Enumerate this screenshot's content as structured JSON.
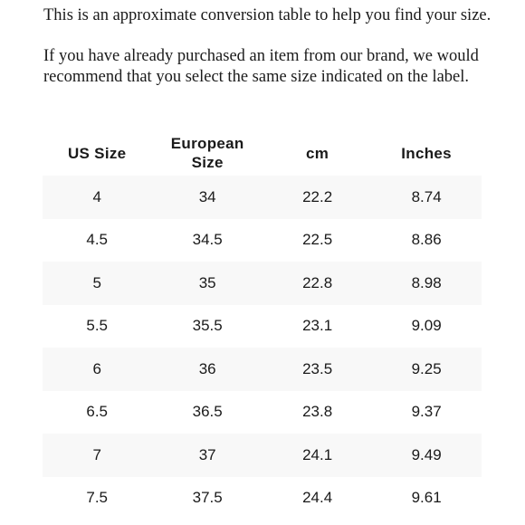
{
  "intro": {
    "paragraph1": "This is an approximate conversion table to help you find your size.",
    "paragraph2": "If you have already purchased an item from our brand, we would recommend that you select the same size indicated on the label."
  },
  "size_table": {
    "headers": {
      "us_size": "US Size",
      "european_size": "European Size",
      "cm": "cm",
      "inches": "Inches"
    },
    "rows": [
      {
        "us": "4",
        "eu": "34",
        "cm": "22.2",
        "in": "8.74"
      },
      {
        "us": "4.5",
        "eu": "34.5",
        "cm": "22.5",
        "in": "8.86"
      },
      {
        "us": "5",
        "eu": "35",
        "cm": "22.8",
        "in": "8.98"
      },
      {
        "us": "5.5",
        "eu": "35.5",
        "cm": "23.1",
        "in": "9.09"
      },
      {
        "us": "6",
        "eu": "36",
        "cm": "23.5",
        "in": "9.25"
      },
      {
        "us": "6.5",
        "eu": "36.5",
        "cm": "23.8",
        "in": "9.37"
      },
      {
        "us": "7",
        "eu": "37",
        "cm": "24.1",
        "in": "9.49"
      },
      {
        "us": "7.5",
        "eu": "37.5",
        "cm": "24.4",
        "in": "9.61"
      }
    ]
  },
  "colors": {
    "text": "#1a1a1a",
    "stripe": "#f8f8f8",
    "background": "#ffffff"
  }
}
